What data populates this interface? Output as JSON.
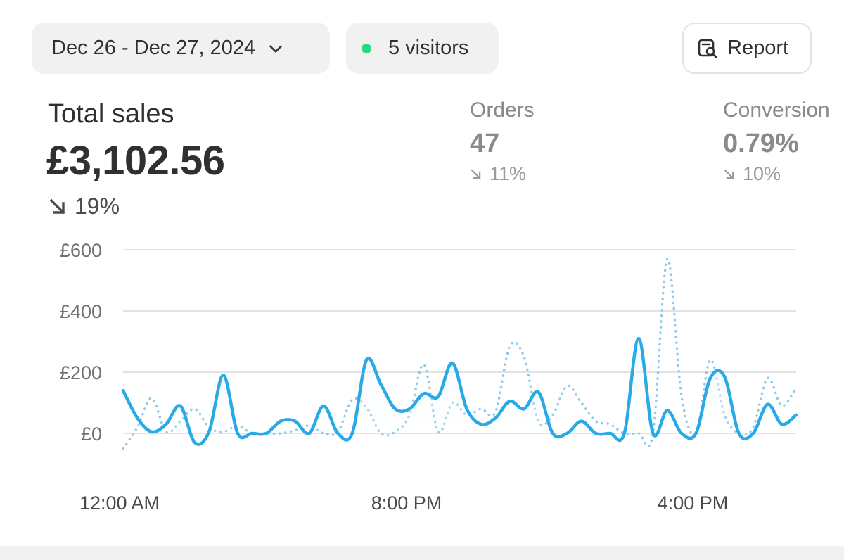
{
  "toolbar": {
    "date_range": "Dec 26 - Dec 27, 2024",
    "visitors": "5 visitors",
    "report_label": "Report",
    "status_color": "#29d880"
  },
  "metrics": {
    "total_sales": {
      "label": "Total sales",
      "value": "£3,102.56",
      "change": "19%",
      "direction": "down"
    },
    "orders": {
      "label": "Orders",
      "value": "47",
      "change": "11%",
      "direction": "down"
    },
    "conversion": {
      "label": "Conversion",
      "value": "0.79%",
      "change": "10%",
      "direction": "down"
    }
  },
  "chart_data": {
    "type": "line",
    "ylim": [
      0,
      600
    ],
    "y_ticks": [
      "£600",
      "£400",
      "£200",
      "£0"
    ],
    "x_ticks": [
      "12:00 AM",
      "8:00 PM",
      "4:00 PM"
    ],
    "grid": true,
    "colors": {
      "primary": "#29a9e6",
      "comparison": "#8fc9e8"
    },
    "series": [
      {
        "style": "solid",
        "values": [
          140,
          50,
          5,
          30,
          90,
          -30,
          5,
          190,
          0,
          0,
          0,
          40,
          40,
          0,
          90,
          0,
          0,
          240,
          160,
          80,
          80,
          130,
          120,
          230,
          80,
          30,
          50,
          105,
          80,
          135,
          0,
          0,
          40,
          0,
          0,
          0,
          310,
          0,
          75,
          0,
          0,
          180,
          185,
          0,
          0,
          95,
          30,
          60
        ]
      },
      {
        "style": "dotted",
        "values": [
          -50,
          20,
          115,
          5,
          40,
          80,
          20,
          5,
          25,
          0,
          0,
          0,
          10,
          25,
          0,
          5,
          110,
          85,
          0,
          5,
          60,
          225,
          5,
          100,
          60,
          80,
          70,
          285,
          250,
          40,
          60,
          155,
          100,
          40,
          30,
          0,
          0,
          0,
          570,
          120,
          0,
          240,
          60,
          0,
          20,
          180,
          90,
          150
        ]
      }
    ]
  }
}
